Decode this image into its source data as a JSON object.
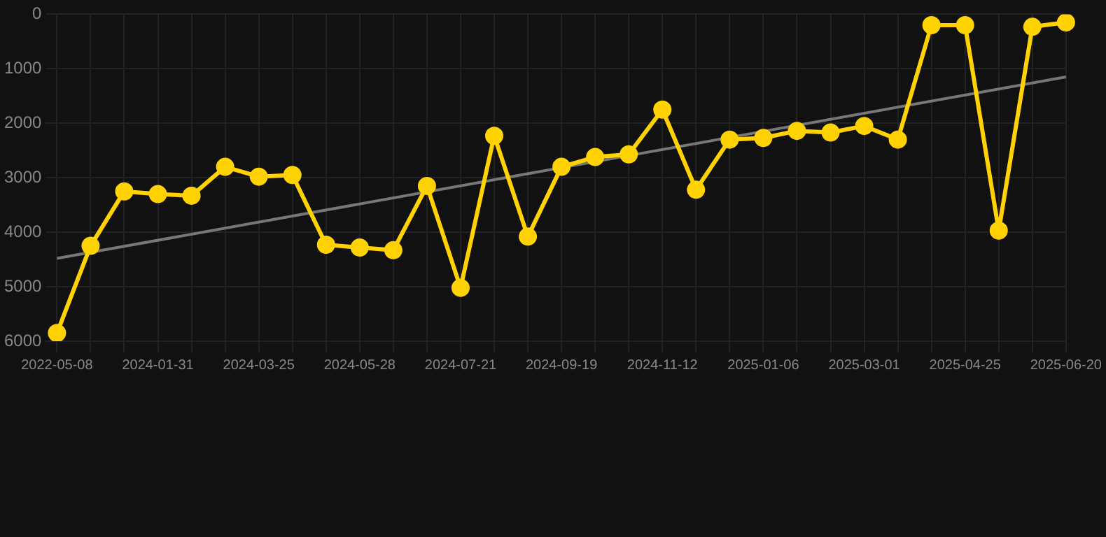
{
  "chart_data": {
    "type": "line",
    "categories": [
      "2022-05-08",
      null,
      null,
      "2024-01-31",
      null,
      null,
      "2024-03-25",
      null,
      null,
      "2024-05-28",
      null,
      null,
      "2024-07-21",
      null,
      null,
      "2024-09-19",
      null,
      null,
      "2024-11-12",
      null,
      null,
      "2025-01-06",
      null,
      null,
      "2025-03-01",
      null,
      null,
      "2025-04-25",
      null,
      null,
      "2025-06-20"
    ],
    "series": [
      {
        "color": "#ffd200",
        "marker": "circle",
        "values": [
          5850,
          4250,
          3250,
          3300,
          3330,
          2800,
          2980,
          2950,
          4230,
          4280,
          4330,
          3150,
          5020,
          2230,
          4080,
          2800,
          2620,
          2570,
          1750,
          3220,
          2300,
          2270,
          2140,
          2170,
          2050,
          2300,
          200,
          200,
          3970,
          230,
          150
        ]
      },
      {
        "color": "#777777",
        "marker": "none",
        "values": [
          4480,
          null,
          null,
          null,
          null,
          null,
          null,
          null,
          null,
          null,
          null,
          null,
          null,
          null,
          null,
          null,
          null,
          null,
          null,
          null,
          null,
          null,
          null,
          null,
          null,
          null,
          null,
          null,
          null,
          null,
          1150
        ]
      }
    ],
    "ylim": [
      6000,
      0
    ],
    "yticks": [
      0,
      1000,
      2000,
      3000,
      4000,
      5000,
      6000
    ],
    "grid": true,
    "legend": false
  }
}
